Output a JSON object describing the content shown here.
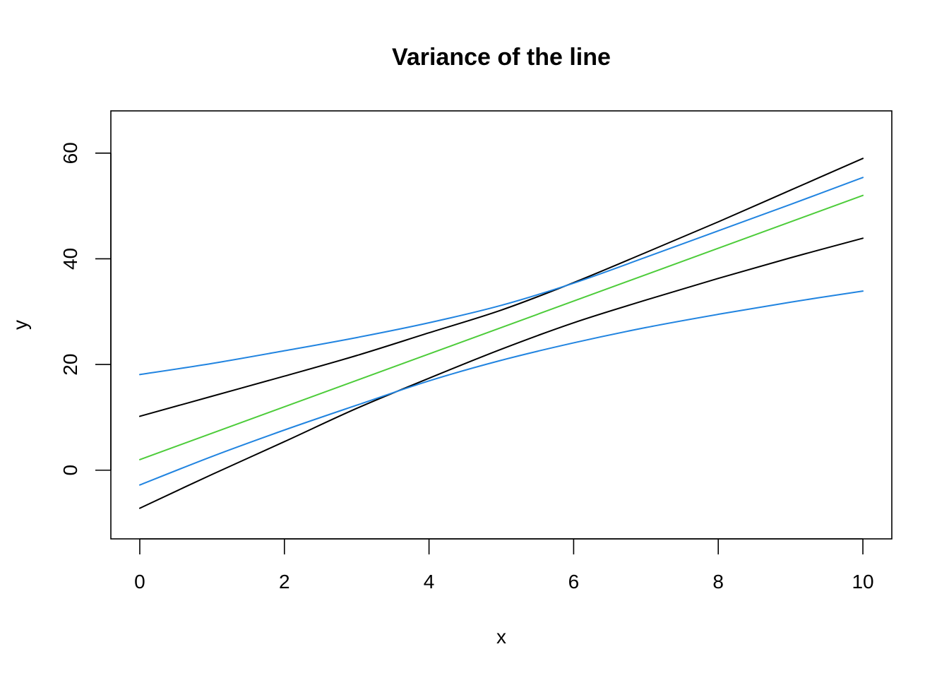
{
  "chart_data": {
    "type": "line",
    "title": "Variance of the line",
    "xlabel": "x",
    "ylabel": "y",
    "xlim": [
      -0.4,
      10.4
    ],
    "ylim": [
      -13,
      68
    ],
    "x_ticks": [
      0,
      2,
      4,
      6,
      8,
      10
    ],
    "y_ticks": [
      0,
      20,
      40,
      60
    ],
    "x_tick_labels": [
      "0",
      "2",
      "4",
      "6",
      "8",
      "10"
    ],
    "y_tick_labels": [
      "0",
      "20",
      "40",
      "60"
    ],
    "grid": false,
    "legend": "none",
    "series": [
      {
        "color": "#000000",
        "x": [
          0,
          1,
          2,
          3,
          4,
          5,
          6,
          7,
          8,
          9,
          10
        ],
        "values": [
          10.2,
          14.0,
          17.8,
          21.7,
          26.0,
          30.3,
          35.5,
          41.2,
          47.0,
          53.0,
          59.0
        ]
      },
      {
        "color": "#000000",
        "x": [
          0,
          1,
          2,
          3,
          4,
          5,
          6,
          7,
          8,
          9,
          10
        ],
        "values": [
          -7.2,
          -0.8,
          5.4,
          11.7,
          17.4,
          22.9,
          27.9,
          32.2,
          36.3,
          40.2,
          43.9
        ]
      },
      {
        "color": "#2184E0",
        "x": [
          0,
          1,
          2,
          3,
          4,
          5,
          6,
          7,
          8,
          9,
          10
        ],
        "values": [
          18.1,
          20.2,
          22.6,
          25.1,
          27.9,
          31.2,
          35.4,
          40.3,
          45.3,
          50.3,
          55.4
        ]
      },
      {
        "color": "#2184E0",
        "x": [
          0,
          1,
          2,
          3,
          4,
          5,
          6,
          7,
          8,
          9,
          10
        ],
        "values": [
          -2.8,
          2.6,
          7.6,
          12.3,
          16.9,
          20.8,
          24.1,
          27.0,
          29.5,
          31.8,
          33.9
        ]
      },
      {
        "color": "#4DCC3A",
        "x": [
          0,
          10
        ],
        "values": [
          2.0,
          52.0
        ]
      }
    ]
  }
}
